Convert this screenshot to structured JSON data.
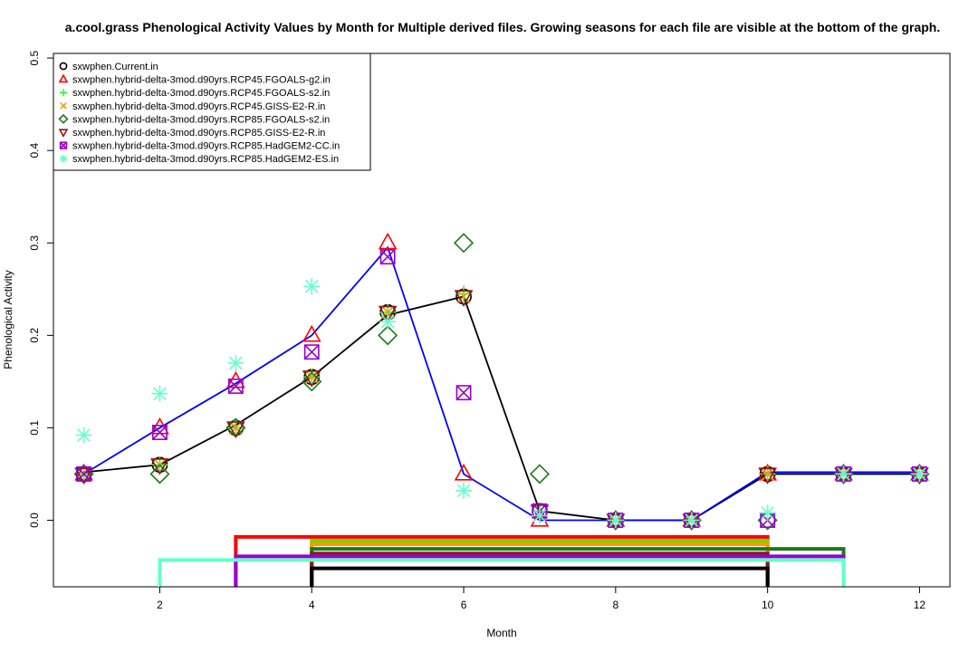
{
  "chart_data": {
    "type": "scatter",
    "title": "a.cool.grass Phenological Activity Values by Month for Multiple derived files. Growing seasons for each file are visible at the bottom of the graph.",
    "xlabel": "Month",
    "ylabel": "Phenological Activity",
    "xlim": [
      0.6,
      12.4
    ],
    "ylim": [
      -0.072,
      0.505
    ],
    "x_ticks": [
      2,
      4,
      6,
      8,
      10,
      12
    ],
    "y_ticks": [
      0.0,
      0.1,
      0.2,
      0.3,
      0.4,
      0.5
    ],
    "y_tick_labels": [
      "0.0",
      "0.1",
      "0.2",
      "0.3",
      "0.4",
      "0.5"
    ],
    "legend_position": "top-left",
    "x": [
      1,
      2,
      3,
      4,
      5,
      6,
      7,
      8,
      9,
      10,
      11,
      12
    ],
    "series": [
      {
        "name": "sxwphen.Current.in",
        "marker": "circle",
        "color": "#000000",
        "values": [
          0.05,
          0.06,
          0.1,
          0.155,
          0.225,
          0.242,
          0.01,
          0,
          0,
          0.05,
          0.05,
          0.05
        ]
      },
      {
        "name": "sxwphen.hybrid-delta-3mod.d90yrs.RCP45.FGOALS-g2.in",
        "marker": "triangle-up",
        "color": "#ff0000",
        "values": [
          0.05,
          0.1,
          0.15,
          0.2,
          0.3,
          0.05,
          0,
          0,
          0,
          0.05,
          0.05,
          0.05
        ]
      },
      {
        "name": "sxwphen.hybrid-delta-3mod.d90yrs.RCP45.FGOALS-s2.in",
        "marker": "plus",
        "color": "#33ff33",
        "values": [
          0.05,
          0.06,
          0.1,
          0.155,
          0.225,
          0.245,
          0.01,
          0,
          0,
          0.05,
          0.05,
          0.05
        ]
      },
      {
        "name": "sxwphen.hybrid-delta-3mod.d90yrs.RCP45.GISS-E2-R.in",
        "marker": "x",
        "color": "#ff9900",
        "values": [
          0.05,
          0.06,
          0.1,
          0.155,
          0.225,
          0.242,
          0.01,
          0,
          0,
          0.05,
          0.05,
          0.05
        ]
      },
      {
        "name": "sxwphen.hybrid-delta-3mod.d90yrs.RCP85.FGOALS-s2.in",
        "marker": "diamond",
        "color": "#1a7a1a",
        "values": [
          0.05,
          0.05,
          0.1,
          0.15,
          0.2,
          0.3,
          0.05,
          0,
          0,
          0.0,
          0.05,
          0.05
        ]
      },
      {
        "name": "sxwphen.hybrid-delta-3mod.d90yrs.RCP85.GISS-E2-R.in",
        "marker": "triangle-down",
        "color": "#8b1a1a",
        "values": [
          0.05,
          0.06,
          0.1,
          0.155,
          0.225,
          0.242,
          0.01,
          0,
          0,
          0.05,
          0.05,
          0.05
        ]
      },
      {
        "name": "sxwphen.hybrid-delta-3mod.d90yrs.RCP85.HadGEM2-CC.in",
        "marker": "boxed-x",
        "color": "#9900cc",
        "values": [
          0.05,
          0.095,
          0.145,
          0.182,
          0.285,
          0.138,
          0.01,
          0,
          0,
          0.0,
          0.05,
          0.05
        ]
      },
      {
        "name": "sxwphen.hybrid-delta-3mod.d90yrs.RCP85.HadGEM2-ES.in",
        "marker": "asterisk",
        "color": "#66ffcc",
        "values": [
          0.092,
          0.137,
          0.17,
          0.253,
          0.215,
          0.032,
          0.005,
          0,
          0,
          0.008,
          0.05,
          0.05
        ]
      }
    ],
    "lines": [
      {
        "name": "sxwphen.Current.in",
        "color": "#000000",
        "values": [
          0.052,
          0.06,
          0.103,
          0.155,
          0.222,
          0.242,
          0.01,
          0,
          0,
          0.05,
          0.05,
          0.05
        ]
      },
      {
        "name": "sxwphen.hybrid-delta-3mod.d90yrs.RCP45.FGOALS-g2.in",
        "color": "#0000ff",
        "values": [
          0.05,
          0.1,
          0.148,
          0.2,
          0.295,
          0.05,
          0,
          0,
          0,
          0.052,
          0.052,
          0.052
        ]
      }
    ],
    "growing_seasons": [
      {
        "name": "RCP45.FGOALS-g2",
        "color": "#ff0000",
        "start": 3,
        "end": 10,
        "y": -0.018
      },
      {
        "name": "RCP45.FGOALS-s2",
        "color": "#66dd00",
        "start": 4,
        "end": 10,
        "y": -0.022
      },
      {
        "name": "RCP45.GISS-E2-R",
        "color": "#ff9900",
        "start": 4,
        "end": 10,
        "y": -0.026
      },
      {
        "name": "RCP85.FGOALS-s2",
        "color": "#1a7a1a",
        "start": 4,
        "end": 11,
        "y": -0.031
      },
      {
        "name": "RCP85.GISS-E2-R",
        "color": "#8b1a1a",
        "start": 4,
        "end": 10,
        "y": -0.036
      },
      {
        "name": "RCP85.HadGEM2-CC",
        "color": "#9900cc",
        "start": 3,
        "end": 11,
        "y": -0.039
      },
      {
        "name": "RCP85.HadGEM2-ES",
        "color": "#66ffcc",
        "start": 2,
        "end": 11,
        "y": -0.043
      },
      {
        "name": "Current",
        "color": "#000000",
        "start": 4,
        "end": 10,
        "y": -0.052
      }
    ]
  }
}
